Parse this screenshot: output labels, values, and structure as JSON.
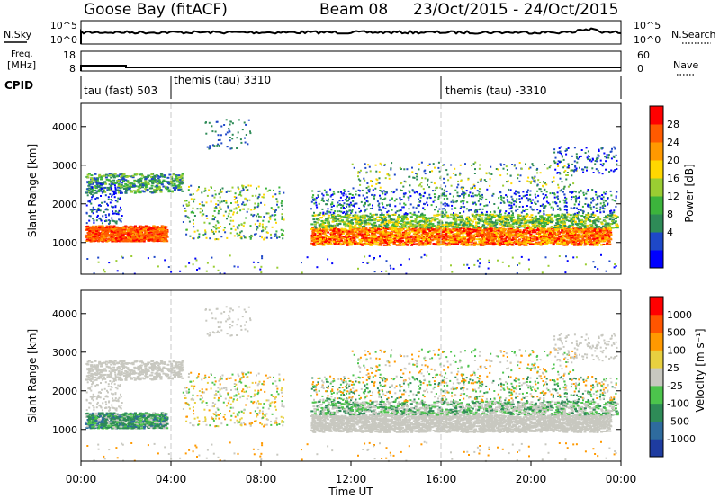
{
  "header": {
    "station": "Goose Bay (fitACF)",
    "beam": "Beam 08",
    "dates": "23/Oct/2015 - 24/Oct/2015"
  },
  "strips": {
    "nsky_label": "N.Sky",
    "nsky_ticks": [
      "10^5",
      "10^0"
    ],
    "nsearch_label": "N.Search",
    "nsearch_ticks": [
      "10^5",
      "10^0"
    ],
    "freq_label": "Freq.",
    "freq_unit": "[MHz]",
    "freq_ticks": [
      "18",
      "8"
    ],
    "nave_label": "Nave",
    "nave_ticks": [
      "60",
      "0"
    ],
    "cpid_label": "CPID",
    "cpid_segments": [
      {
        "start_h": 0,
        "label": "tau (fast) 503"
      },
      {
        "start_h": 4,
        "label": "themis (tau) 3310"
      },
      {
        "start_h": 16,
        "label": "themis (tau) -3310"
      }
    ]
  },
  "chart_data": [
    {
      "type": "heatmap",
      "ylabel": "Slant Range [km]",
      "ylim": [
        180,
        4600
      ],
      "yticks": [
        "4000",
        "3000",
        "2000",
        "1000"
      ],
      "xlim_hours": [
        0,
        24
      ],
      "colorbar_label": "Power [dB]",
      "colorbar_ticks": [
        "28",
        "24",
        "20",
        "16",
        "12",
        "8",
        "4"
      ],
      "colorbar_colors": [
        "#0000ff",
        "#1e48c8",
        "#2e8b57",
        "#3cb43c",
        "#9acd32",
        "#ffd700",
        "#ff9900",
        "#ff5a00",
        "#ff0000"
      ]
    },
    {
      "type": "heatmap",
      "ylabel": "Slant Range [km]",
      "ylim": [
        180,
        4600
      ],
      "yticks": [
        "4000",
        "3000",
        "2000",
        "1000"
      ],
      "xlim_hours": [
        0,
        24
      ],
      "colorbar_label": "Velocity [m s⁻¹]",
      "colorbar_ticks": [
        "1000",
        "500",
        "100",
        "25",
        "-25",
        "-100",
        "-500",
        "-1000"
      ],
      "colorbar_colors": [
        "#1e3ca0",
        "#2e6b9e",
        "#2e8b57",
        "#4cc44c",
        "#c8c8c0",
        "#e8d040",
        "#ff9900",
        "#ff5500",
        "#ff0000"
      ]
    }
  ],
  "xaxis": {
    "label": "Time UT",
    "ticks": [
      "00:00",
      "04:00",
      "08:00",
      "12:00",
      "16:00",
      "20:00",
      "00:00"
    ]
  }
}
